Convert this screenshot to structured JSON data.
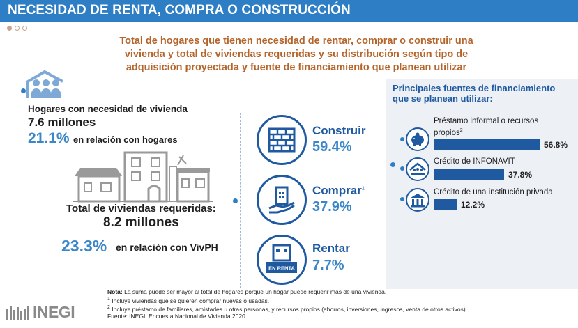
{
  "header": {
    "title": "NECESIDAD DE RENTA, COMPRA O CONSTRUCCIÓN"
  },
  "subtitle": {
    "line1": "Total de hogares que tienen necesidad de rentar, comprar o construir una",
    "line2": "vivienda y total de viviendas requeridas y su distribución según tipo de",
    "line3": "adquisición proyectada y fuente de financiamiento que planean utilizar"
  },
  "hogares": {
    "label": "Hogares con necesidad de vivienda",
    "value": "7.6 millones",
    "pct": "21.1%",
    "pct_text": "en relación con hogares"
  },
  "viviendas": {
    "label": "Total de viviendas requeridas:",
    "value": "8.2 millones",
    "pct": "23.3%",
    "pct_text": "en relación con VivPH"
  },
  "tipos": [
    {
      "label": "Construir",
      "value": "59.4%",
      "icon": "brick-wall-icon"
    },
    {
      "label": "Comprar",
      "sup": "1",
      "value": "37.9%",
      "icon": "house-in-hand-icon"
    },
    {
      "label": "Rentar",
      "value": "7.7%",
      "icon": "house-for-rent-icon",
      "sign": "EN RENTA"
    }
  ],
  "financiamiento": {
    "title_line1": "Principales fuentes de financiamiento",
    "title_line2": "que se planean utilizar:",
    "items": [
      {
        "label_line1": "Préstamo informal o recursos",
        "label_line2": "propios",
        "sup": "2",
        "value": "56.8%",
        "pct": 56.8,
        "icon": "piggy-bank-icon"
      },
      {
        "label_line1": "Crédito de INFONAVIT",
        "label_line2": "",
        "value": "37.8%",
        "pct": 37.8,
        "icon": "infonavit-logo-icon"
      },
      {
        "label_line1": "Crédito de una institución privada",
        "label_line2": "",
        "value": "12.2%",
        "pct": 12.2,
        "icon": "bank-icon"
      }
    ]
  },
  "notes": {
    "nota_label": "Nota:",
    "nota": "La suma puede ser mayor al total de hogares porque un hogar puede requerir más de una vivienda.",
    "n1": "Incluye viviendas que se quieren comprar nuevas o usadas.",
    "n2": "Incluye préstamo de familiares, amistades u otras personas, y recursos propios (ahorros, inversiones, ingresos, venta de otros activos).",
    "fuente": "Fuente: INEGI. Encuesta Nacional de Vivienda 2020."
  },
  "logo": {
    "text": "INEGI"
  },
  "colors": {
    "primary": "#2d7ec4",
    "dark_blue": "#1f5aa0",
    "accent": "#b5652b",
    "panel": "#edf0f5"
  }
}
